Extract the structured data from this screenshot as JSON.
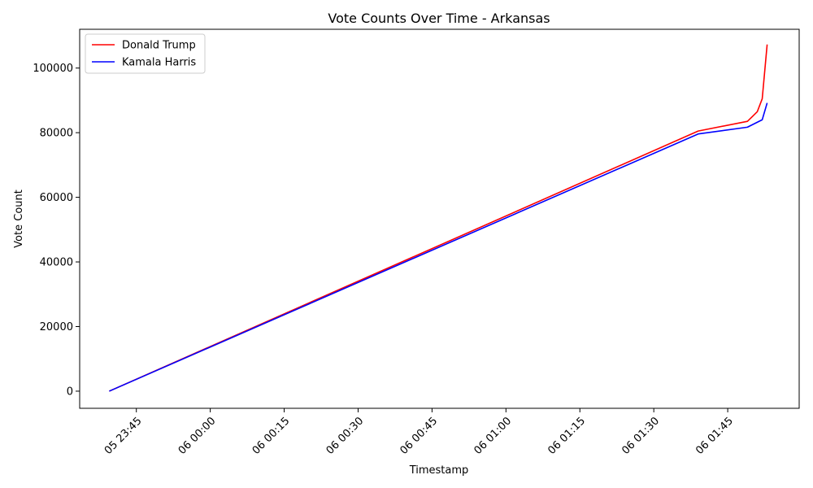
{
  "chart_data": {
    "type": "line",
    "title": "Vote Counts Over Time - Arkansas",
    "xlabel": "Timestamp",
    "ylabel": "Vote Count",
    "x_tick_labels": [
      "05 23:45",
      "06 00:00",
      "06 00:15",
      "06 00:30",
      "06 00:45",
      "06 01:00",
      "06 01:15",
      "06 01:30",
      "06 01:45"
    ],
    "x_tick_times": [
      "2024-11-05T23:45",
      "2024-11-06T00:00",
      "2024-11-06T00:15",
      "2024-11-06T00:30",
      "2024-11-06T00:45",
      "2024-11-06T01:00",
      "2024-11-06T01:15",
      "2024-11-06T01:30",
      "2024-11-06T01:45"
    ],
    "xlim": [
      "2024-11-05T23:33:30",
      "2024-11-06T01:59:30"
    ],
    "ylim": [
      -5300,
      112000
    ],
    "y_ticks": [
      0,
      20000,
      40000,
      60000,
      80000,
      100000
    ],
    "grid": false,
    "legend_position": "top-left",
    "series": [
      {
        "name": "Donald Trump",
        "color": "#ff0000",
        "x": [
          "2024-11-05T23:39:30",
          "2024-11-06T01:39:00",
          "2024-11-06T01:49:00",
          "2024-11-06T01:50:00",
          "2024-11-06T01:51:00",
          "2024-11-06T01:52:00",
          "2024-11-06T01:53:00"
        ],
        "y": [
          0,
          80500,
          83500,
          85000,
          86500,
          90500,
          107300
        ]
      },
      {
        "name": "Kamala Harris",
        "color": "#0000ff",
        "x": [
          "2024-11-05T23:39:30",
          "2024-11-06T01:39:00",
          "2024-11-06T01:49:00",
          "2024-11-06T01:52:00",
          "2024-11-06T01:53:00"
        ],
        "y": [
          0,
          79600,
          81700,
          84000,
          89200
        ]
      }
    ]
  }
}
